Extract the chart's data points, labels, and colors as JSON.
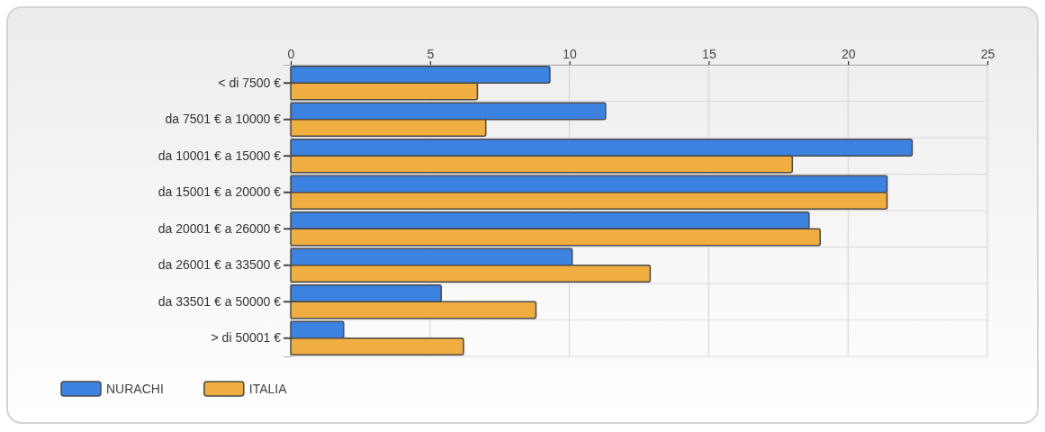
{
  "chart_data": {
    "type": "bar",
    "orientation": "horizontal",
    "categories": [
      "< di 7500 €",
      "da 7501 € a 10000 €",
      "da 10001 € a 15000 €",
      "da 15001 € a 20000 €",
      "da 20001 € a 26000 €",
      "da 26001 € a 33500 €",
      "da 33501 € a 50000 €",
      "> di 50001 €"
    ],
    "series": [
      {
        "name": "NURACHI",
        "color": "#3c82e0",
        "values": [
          9.3,
          11.3,
          22.3,
          21.4,
          18.6,
          10.1,
          5.4,
          1.9
        ]
      },
      {
        "name": "ITALIA",
        "color": "#f0ad40",
        "values": [
          6.7,
          7.0,
          18.0,
          21.4,
          19.0,
          12.9,
          8.8,
          6.2
        ]
      }
    ],
    "xlim": [
      0,
      25
    ],
    "xticks": [
      0,
      5,
      10,
      15,
      20,
      25
    ],
    "grid": true,
    "legend": "bottom left"
  }
}
